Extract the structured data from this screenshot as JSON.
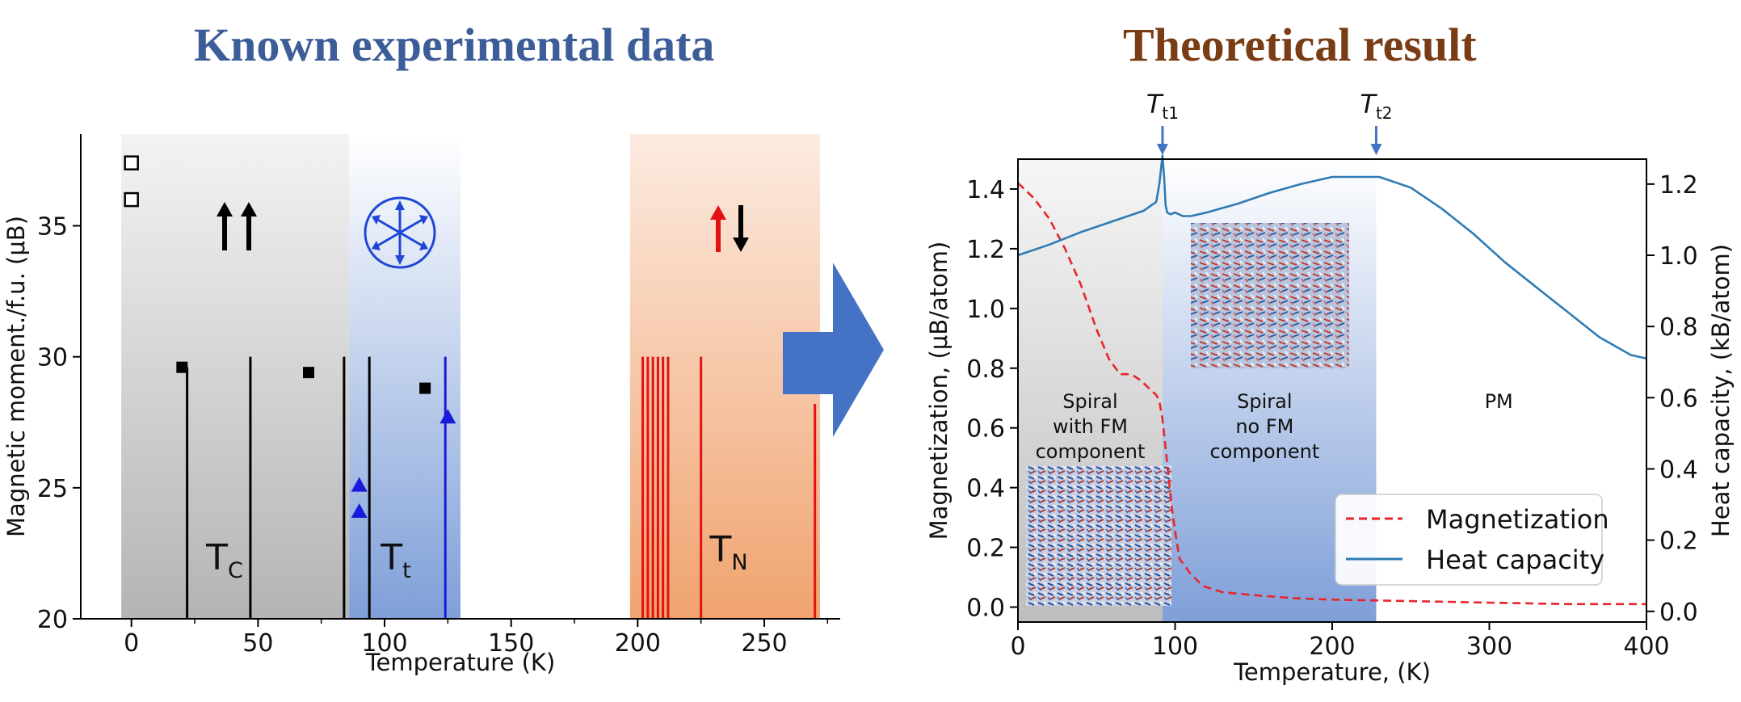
{
  "titles": {
    "left": "Known experimental data",
    "right": "Theoretical result",
    "left_color": "#3d5d98",
    "right_color": "#7a3c14"
  },
  "arrow_color": "#4472c4",
  "chart_data": [
    {
      "type": "scatter",
      "title": "Known experimental data",
      "xlabel": "Temperature (K)",
      "ylabel": "Magnetic moment./f.u. (μB)",
      "xlim": [
        -20,
        280
      ],
      "ylim": [
        20,
        38.5
      ],
      "xticks": [
        0,
        50,
        100,
        150,
        200,
        250
      ],
      "yticks": [
        20,
        25,
        30,
        35
      ],
      "regions": [
        {
          "name": "ferromagnetic",
          "x0": -4,
          "x1": 86,
          "color": "#bdbdbd"
        },
        {
          "name": "spiral",
          "x0": 86,
          "x1": 130,
          "color": "#8fa9dc"
        },
        {
          "name": "antiferromagnetic",
          "x0": 197,
          "x1": 272,
          "color": "#f2a577"
        }
      ],
      "open_squares": [
        {
          "x": 0,
          "y": 37.4
        },
        {
          "x": 0,
          "y": 36.0
        }
      ],
      "filled_squares": [
        {
          "x": 20,
          "y": 29.6
        },
        {
          "x": 70,
          "y": 29.4
        },
        {
          "x": 116,
          "y": 28.8
        }
      ],
      "triangles": [
        {
          "x": 90,
          "y": 25.1
        },
        {
          "x": 90,
          "y": 24.1
        },
        {
          "x": 125,
          "y": 27.7
        }
      ],
      "black_lines": [
        {
          "x": 22,
          "y": 29.6
        },
        {
          "x": 47,
          "y": 30.0
        },
        {
          "x": 84,
          "y": 30.0
        },
        {
          "x": 94,
          "y": 30.0
        }
      ],
      "blue_lines": [
        {
          "x": 124,
          "y": 30.0
        }
      ],
      "red_lines": [
        {
          "x": 202,
          "y": 30.0
        },
        {
          "x": 204,
          "y": 30.0
        },
        {
          "x": 206,
          "y": 30.0
        },
        {
          "x": 208,
          "y": 30.0
        },
        {
          "x": 210,
          "y": 30.0
        },
        {
          "x": 212,
          "y": 30.0
        },
        {
          "x": 225,
          "y": 30.0
        },
        {
          "x": 270,
          "y": 28.2
        }
      ],
      "annotations": {
        "tc_main": "T",
        "tc_sub": "C",
        "tt_main": "T",
        "tt_sub": "t",
        "tn_main": "T",
        "tn_sub": "N"
      }
    },
    {
      "type": "line",
      "title": "Theoretical result",
      "xlabel": "Temperature, (K)",
      "ylabel_left": "Magnetization, (μB/atom)",
      "ylabel_right": "Heat capacity, (kB/atom)",
      "xlim": [
        0,
        400
      ],
      "ylim_left": [
        -0.05,
        1.5
      ],
      "ylim_right": [
        -0.03,
        1.27
      ],
      "xticks": [
        0,
        100,
        200,
        300,
        400
      ],
      "yticks_left": [
        "0.0",
        "0.2",
        "0.4",
        "0.6",
        "0.8",
        "1.0",
        "1.2",
        "1.4"
      ],
      "yticks_right": [
        "0.0",
        "0.2",
        "0.4",
        "0.6",
        "0.8",
        "1.0",
        "1.2"
      ],
      "regions": [
        {
          "name": "Spiral with FM component",
          "x0": 0,
          "x1": 92,
          "color": "#c2c2c2"
        },
        {
          "name": "Spiral no FM component",
          "x0": 92,
          "x1": 228,
          "color": "#8aa6dc"
        }
      ],
      "transitions": [
        {
          "label_main": "T",
          "label_sub": "t1",
          "x": 92
        },
        {
          "label_main": "T",
          "label_sub": "t2",
          "x": 228
        }
      ],
      "phase_labels": [
        {
          "lines": [
            "Spiral",
            "with FM",
            "component"
          ],
          "x": 46
        },
        {
          "lines": [
            "Spiral",
            "no FM",
            "component"
          ],
          "x": 157
        },
        {
          "lines": [
            "PM"
          ],
          "x": 306
        }
      ],
      "series": [
        {
          "name": "Magnetization",
          "style": "dashed",
          "color": "#e8252b",
          "axis": "left",
          "x": [
            0,
            10,
            20,
            30,
            40,
            50,
            58,
            65,
            72,
            78,
            84,
            88,
            90,
            92,
            95,
            98,
            101,
            103,
            106,
            110,
            118,
            130,
            150,
            175,
            200,
            250,
            300,
            350,
            400
          ],
          "y": [
            1.42,
            1.37,
            1.3,
            1.2,
            1.08,
            0.93,
            0.83,
            0.78,
            0.78,
            0.76,
            0.73,
            0.71,
            0.69,
            0.63,
            0.48,
            0.33,
            0.22,
            0.16,
            0.14,
            0.11,
            0.07,
            0.05,
            0.04,
            0.03,
            0.025,
            0.02,
            0.015,
            0.01,
            0.01
          ]
        },
        {
          "name": "Heat capacity",
          "style": "solid",
          "color": "#2f7bb4",
          "axis": "right",
          "x": [
            0,
            20,
            40,
            60,
            80,
            88,
            90,
            92,
            93,
            94,
            95,
            97,
            100,
            105,
            110,
            120,
            140,
            160,
            180,
            200,
            220,
            230,
            250,
            270,
            290,
            310,
            330,
            350,
            370,
            390,
            400
          ],
          "y": [
            1.0,
            1.03,
            1.065,
            1.095,
            1.125,
            1.15,
            1.2,
            1.28,
            1.22,
            1.14,
            1.12,
            1.115,
            1.12,
            1.11,
            1.11,
            1.12,
            1.145,
            1.175,
            1.2,
            1.22,
            1.22,
            1.22,
            1.19,
            1.13,
            1.06,
            0.98,
            0.91,
            0.84,
            0.77,
            0.72,
            0.71
          ]
        }
      ],
      "legend": {
        "position": "lower-right",
        "entries": [
          "Magnetization",
          "Heat capacity"
        ]
      }
    }
  ]
}
